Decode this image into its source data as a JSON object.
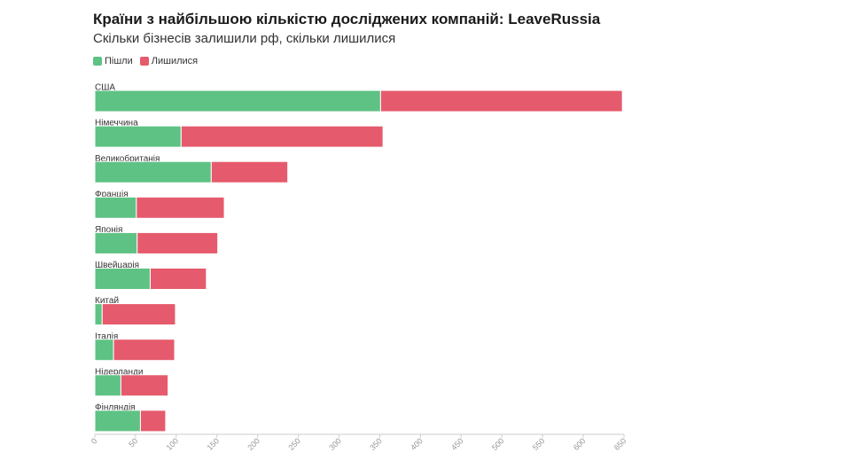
{
  "colors": {
    "left": "#5ec284",
    "stayed": "#e55a6c",
    "axis": "#cccccc",
    "tick_text": "#999999",
    "label_text": "#333333"
  },
  "chart_data": {
    "type": "bar",
    "orientation": "horizontal",
    "stacked": true,
    "title": "Країни з найбільшою кількістю досліджених компаній: LeaveRussia",
    "subtitle": "Скільки бізнесів залишили рф, скільки лишилися",
    "legend_position": "top-left",
    "categories": [
      "США",
      "Німеччина",
      "Великобританія",
      "Франція",
      "Японія",
      "Швейцарія",
      "Китай",
      "Італія",
      "Нідерланди",
      "Фінляндія"
    ],
    "series": [
      {
        "name": "Пішли",
        "color": "#5ec284",
        "values": [
          351,
          106,
          143,
          51,
          52,
          68,
          9,
          23,
          32,
          56
        ]
      },
      {
        "name": "Лишилися",
        "color": "#e55a6c",
        "values": [
          297,
          248,
          94,
          108,
          99,
          69,
          90,
          75,
          58,
          31
        ]
      }
    ],
    "xlim": [
      0,
      650
    ],
    "xticks": [
      "0",
      "50",
      "100",
      "150",
      "200",
      "250",
      "300",
      "350",
      "400",
      "450",
      "500",
      "550",
      "600",
      "650"
    ],
    "grid": false
  }
}
